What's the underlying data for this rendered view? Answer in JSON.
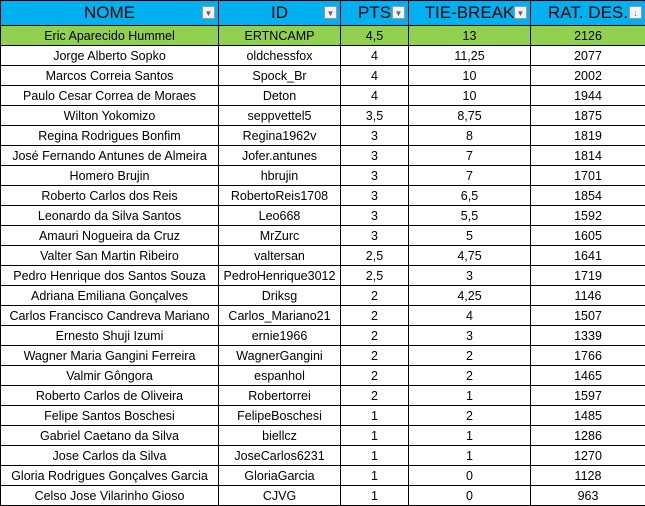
{
  "colors": {
    "header": "#00b0f0",
    "winner_row": "#92d050"
  },
  "headers": [
    "NOME",
    "ID",
    "PTS",
    "TIE-BREAK",
    "RAT. DES."
  ],
  "filter_icons": [
    "dropdown-arrow-icon",
    "dropdown-arrow-icon",
    "dropdown-arrow-icon",
    "dropdown-arrow-icon",
    "sort-descending-icon"
  ],
  "rows": [
    [
      "Eric Aparecido Hummel",
      "ERTNCAMP",
      "4,5",
      "13",
      "2126"
    ],
    [
      "Jorge Alberto Sopko",
      "oldchessfox",
      "4",
      "11,25",
      "2077"
    ],
    [
      "Marcos Correia Santos",
      "Spock_Br",
      "4",
      "10",
      "2002"
    ],
    [
      "Paulo Cesar Correa de Moraes",
      "Deton",
      "4",
      "10",
      "1944"
    ],
    [
      "Wilton Yokomizo",
      "seppvettel5",
      "3,5",
      "8,75",
      "1875"
    ],
    [
      "Regina Rodrigues Bonfim",
      "Regina1962v",
      "3",
      "8",
      "1819"
    ],
    [
      "José Fernando Antunes de Almeira",
      "Jofer.antunes",
      "3",
      "7",
      "1814"
    ],
    [
      "Homero Brujin",
      "hbrujin",
      "3",
      "7",
      "1701"
    ],
    [
      "Roberto Carlos dos Reis",
      "RobertoReis1708",
      "3",
      "6,5",
      "1854"
    ],
    [
      "Leonardo da Silva Santos",
      "Leo668",
      "3",
      "5,5",
      "1592"
    ],
    [
      "Amauri Nogueira da Cruz",
      "MrZurc",
      "3",
      "5",
      "1605"
    ],
    [
      "Valter San Martin Ribeiro",
      "valtersan",
      "2,5",
      "4,75",
      "1641"
    ],
    [
      "Pedro Henrique dos Santos Souza",
      "PedroHenrique3012",
      "2,5",
      "3",
      "1719"
    ],
    [
      "Adriana Emiliana Gonçalves",
      "Driksg",
      "2",
      "4,25",
      "1146"
    ],
    [
      "Carlos Francisco Candreva Mariano",
      "Carlos_Mariano21",
      "2",
      "4",
      "1507"
    ],
    [
      "Ernesto Shuji Izumi",
      "ernie1966",
      "2",
      "3",
      "1339"
    ],
    [
      "Wagner Maria Gangini Ferreira",
      "WagnerGangini",
      "2",
      "2",
      "1766"
    ],
    [
      "Valmir Gôngora",
      "espanhol",
      "2",
      "2",
      "1465"
    ],
    [
      "Roberto Carlos de Oliveira",
      "Robertorrei",
      "2",
      "1",
      "1597"
    ],
    [
      "Felipe Santos Boschesi",
      "FelipeBoschesi",
      "1",
      "2",
      "1485"
    ],
    [
      "Gabriel Caetano da Silva",
      "biellcz",
      "1",
      "1",
      "1286"
    ],
    [
      "Jose Carlos da Silva",
      "JoseCarlos6231",
      "1",
      "1",
      "1270"
    ],
    [
      "Gloria Rodrigues Gonçalves Garcia",
      "GloriaGarcia",
      "1",
      "0",
      "1128"
    ],
    [
      "Celso Jose Vilarinho Gioso",
      "CJVG",
      "1",
      "0",
      "963"
    ]
  ]
}
